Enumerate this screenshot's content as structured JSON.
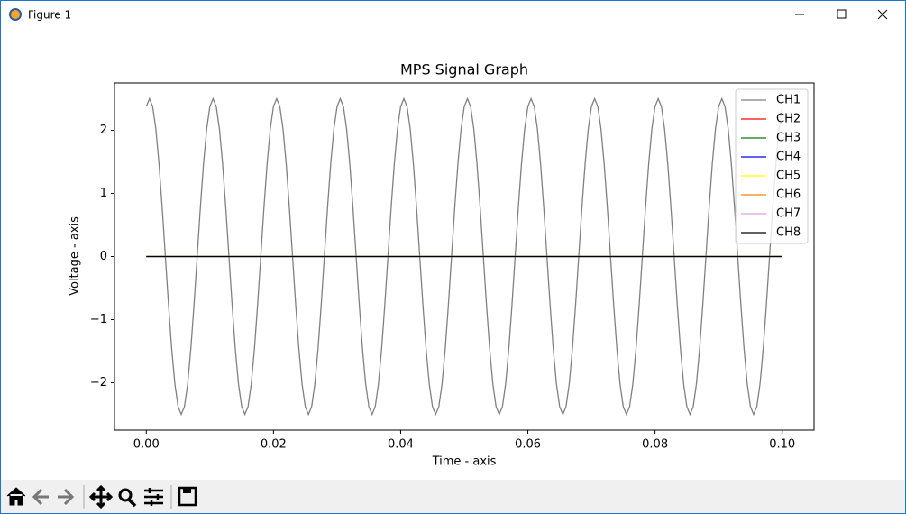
{
  "window": {
    "title": "Figure 1"
  },
  "chart_data": {
    "type": "line",
    "title": "MPS Signal Graph",
    "x_label": "Time - axis",
    "y_label": "Voltage - axis",
    "xlim": [
      -0.005,
      0.105
    ],
    "ylim": [
      -2.75,
      2.75
    ],
    "xticks": [
      {
        "value": 0,
        "label": "0.00"
      },
      0.02,
      0.04,
      0.06,
      0.08,
      {
        "value": 0.1,
        "label": "0.10"
      }
    ],
    "yticks": [
      {
        "value": -2,
        "label": "−2"
      },
      {
        "value": -1,
        "label": "−1"
      },
      0,
      1,
      2
    ],
    "grid": false,
    "legend": "upper right",
    "series": [
      {
        "name": "CH1",
        "color": "#808080",
        "x": [
          0,
          0.0005,
          0.001,
          0.0015,
          0.002,
          0.0025,
          0.003,
          0.0035,
          0.004,
          0.0045,
          0.005,
          0.0055,
          0.006,
          0.0065,
          0.007,
          0.0075,
          0.008,
          0.0085,
          0.009,
          0.0095,
          0.01,
          0.0105,
          0.011,
          0.0115,
          0.012,
          0.0125,
          0.013,
          0.0135,
          0.014,
          0.0145,
          0.015,
          0.0155,
          0.016,
          0.0165,
          0.017,
          0.0175,
          0.018,
          0.0185,
          0.019,
          0.0195,
          0.02,
          0.0205,
          0.021,
          0.0215,
          0.022,
          0.0225,
          0.023,
          0.0235,
          0.024,
          0.0245,
          0.025,
          0.0255,
          0.026,
          0.0265,
          0.027,
          0.0275,
          0.028,
          0.0285,
          0.029,
          0.0295,
          0.03,
          0.0305,
          0.031,
          0.0315,
          0.032,
          0.0325,
          0.033,
          0.0335,
          0.034,
          0.0345,
          0.035,
          0.0355,
          0.036,
          0.0365,
          0.037,
          0.0375,
          0.038,
          0.0385,
          0.039,
          0.0395,
          0.04,
          0.0405,
          0.041,
          0.0415,
          0.042,
          0.0425,
          0.043,
          0.0435,
          0.044,
          0.0445,
          0.045,
          0.0455,
          0.046,
          0.0465,
          0.047,
          0.0475,
          0.048,
          0.0485,
          0.049,
          0.0495,
          0.05,
          0.0505,
          0.051,
          0.0515,
          0.052,
          0.0525,
          0.053,
          0.0535,
          0.054,
          0.0545,
          0.055,
          0.0555,
          0.056,
          0.0565,
          0.057,
          0.0575,
          0.058,
          0.0585,
          0.059,
          0.0595,
          0.06,
          0.0605,
          0.061,
          0.0615,
          0.062,
          0.0625,
          0.063,
          0.0635,
          0.064,
          0.0645,
          0.065,
          0.0655,
          0.066,
          0.0665,
          0.067,
          0.0675,
          0.068,
          0.0685,
          0.069,
          0.0695,
          0.07,
          0.0705,
          0.071,
          0.0715,
          0.072,
          0.0725,
          0.073,
          0.0735,
          0.074,
          0.0745,
          0.075,
          0.0755,
          0.076,
          0.0765,
          0.077,
          0.0775,
          0.078,
          0.0785,
          0.079,
          0.0795,
          0.08,
          0.0805,
          0.081,
          0.0815,
          0.082,
          0.0825,
          0.083,
          0.0835,
          0.084,
          0.0845,
          0.085,
          0.0855,
          0.086,
          0.0865,
          0.087,
          0.0875,
          0.088,
          0.0885,
          0.089,
          0.0895,
          0.09,
          0.0905,
          0.091,
          0.0915,
          0.092,
          0.0925,
          0.093,
          0.0935,
          0.094,
          0.0945,
          0.095,
          0.0955,
          0.096,
          0.0965,
          0.097,
          0.0975,
          0.098,
          0.0985,
          0.099,
          0.0995,
          0.1
        ],
        "values": [
          2.378,
          2.5,
          2.378,
          2.023,
          1.469,
          0.773,
          0,
          -0.773,
          -1.469,
          -2.023,
          -2.378,
          -2.5,
          -2.378,
          -2.023,
          -1.469,
          -0.773,
          0,
          0.773,
          1.469,
          2.023,
          2.378,
          2.5,
          2.378,
          2.023,
          1.469,
          0.773,
          0,
          -0.773,
          -1.469,
          -2.023,
          -2.378,
          -2.5,
          -2.378,
          -2.023,
          -1.469,
          -0.773,
          0,
          0.773,
          1.469,
          2.023,
          2.378,
          2.5,
          2.378,
          2.023,
          1.469,
          0.773,
          0,
          -0.773,
          -1.469,
          -2.023,
          -2.378,
          -2.5,
          -2.378,
          -2.023,
          -1.469,
          -0.773,
          0,
          0.773,
          1.469,
          2.023,
          2.378,
          2.5,
          2.378,
          2.023,
          1.469,
          0.773,
          0,
          -0.773,
          -1.469,
          -2.023,
          -2.378,
          -2.5,
          -2.378,
          -2.023,
          -1.469,
          -0.773,
          0,
          0.773,
          1.469,
          2.023,
          2.378,
          2.5,
          2.378,
          2.023,
          1.469,
          0.773,
          0,
          -0.773,
          -1.469,
          -2.023,
          -2.378,
          -2.5,
          -2.378,
          -2.023,
          -1.469,
          -0.773,
          0,
          0.773,
          1.469,
          2.023,
          2.378,
          2.5,
          2.378,
          2.023,
          1.469,
          0.773,
          0,
          -0.773,
          -1.469,
          -2.023,
          -2.378,
          -2.5,
          -2.378,
          -2.023,
          -1.469,
          -0.773,
          0,
          0.773,
          1.469,
          2.023,
          2.378,
          2.5,
          2.378,
          2.023,
          1.469,
          0.773,
          0,
          -0.773,
          -1.469,
          -2.023,
          -2.378,
          -2.5,
          -2.378,
          -2.023,
          -1.469,
          -0.773,
          0,
          0.773,
          1.469,
          2.023,
          2.378,
          2.5,
          2.378,
          2.023,
          1.469,
          0.773,
          0,
          -0.773,
          -1.469,
          -2.023,
          -2.378,
          -2.5,
          -2.378,
          -2.023,
          -1.469,
          -0.773,
          0,
          0.773,
          1.469,
          2.023,
          2.378,
          2.5,
          2.378,
          2.023,
          1.469,
          0.773,
          0,
          -0.773,
          -1.469,
          -2.023,
          -2.378,
          -2.5,
          -2.378,
          -2.023,
          -1.469,
          -0.773,
          0,
          0.773,
          1.469,
          2.023,
          2.378,
          2.5,
          2.378,
          2.023,
          1.469,
          0.773,
          0,
          -0.773,
          -1.469,
          -2.023,
          -2.378,
          -2.5,
          -2.378,
          -2.023,
          -1.469,
          -0.773,
          0,
          0.773,
          1.469,
          2.023,
          2.378
        ]
      },
      {
        "name": "CH2",
        "color": "#ff0000",
        "x": [
          0,
          0.1
        ],
        "values": [
          0,
          0
        ]
      },
      {
        "name": "CH3",
        "color": "#008000",
        "x": [
          0,
          0.1
        ],
        "values": [
          0,
          0
        ]
      },
      {
        "name": "CH4",
        "color": "#0000ff",
        "x": [
          0,
          0.1
        ],
        "values": [
          0,
          0
        ]
      },
      {
        "name": "CH5",
        "color": "#ffff00",
        "x": [
          0,
          0.1
        ],
        "values": [
          0,
          0
        ]
      },
      {
        "name": "CH6",
        "color": "#ff7f0e",
        "x": [
          0,
          0.1
        ],
        "values": [
          0,
          0
        ]
      },
      {
        "name": "CH7",
        "color": "#dda0dd",
        "x": [
          0,
          0.1
        ],
        "values": [
          0,
          0
        ]
      },
      {
        "name": "CH8",
        "color": "#000000",
        "x": [
          0,
          0.1
        ],
        "values": [
          0,
          0
        ]
      }
    ]
  }
}
